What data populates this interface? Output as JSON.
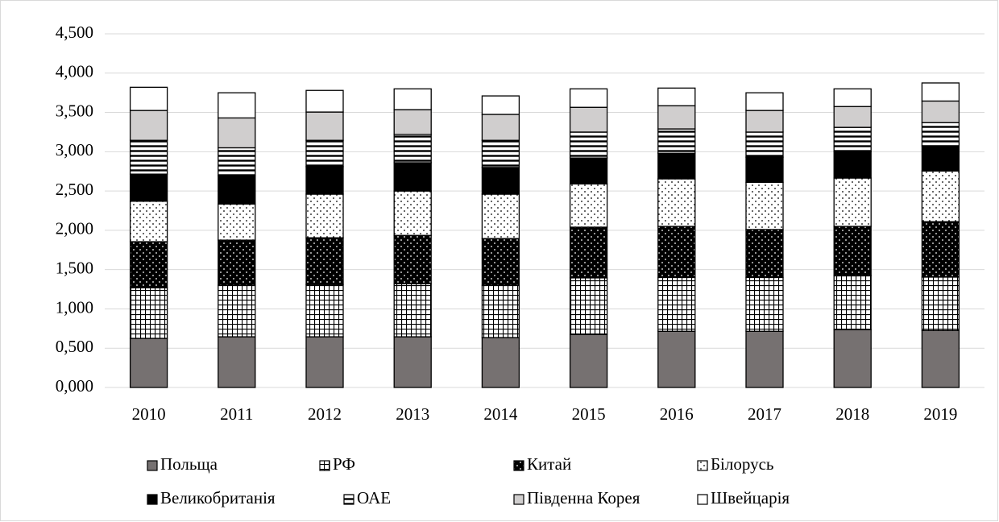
{
  "chart_data": {
    "type": "stacked_bar",
    "categories": [
      "2010",
      "2011",
      "2012",
      "2013",
      "2014",
      "2015",
      "2016",
      "2017",
      "2018",
      "2019"
    ],
    "series": [
      {
        "name": "Польща",
        "color": "#767171",
        "pattern": "solid",
        "values": [
          0.625,
          0.645,
          0.645,
          0.645,
          0.635,
          0.675,
          0.715,
          0.715,
          0.735,
          0.725
        ]
      },
      {
        "name": "РФ",
        "color": "#000000",
        "pattern": "grid",
        "values": [
          0.645,
          0.655,
          0.665,
          0.675,
          0.665,
          0.72,
          0.685,
          0.685,
          0.69,
          0.68
        ]
      },
      {
        "name": "Китай",
        "color": "#000000",
        "pattern": "dark-dots",
        "values": [
          0.585,
          0.575,
          0.595,
          0.615,
          0.595,
          0.645,
          0.65,
          0.61,
          0.625,
          0.705
        ]
      },
      {
        "name": "Білорусь",
        "color": "#000000",
        "pattern": "light-dots",
        "values": [
          0.515,
          0.46,
          0.555,
          0.565,
          0.565,
          0.55,
          0.605,
          0.6,
          0.615,
          0.645
        ]
      },
      {
        "name": "Великобританія",
        "color": "#000000",
        "pattern": "solid",
        "values": [
          0.345,
          0.36,
          0.35,
          0.36,
          0.34,
          0.33,
          0.325,
          0.32,
          0.335,
          0.32
        ]
      },
      {
        "name": "ОАЕ",
        "color": "#000000",
        "pattern": "stripes",
        "values": [
          0.43,
          0.355,
          0.335,
          0.36,
          0.345,
          0.33,
          0.31,
          0.32,
          0.31,
          0.295
        ]
      },
      {
        "name": "Південна Корея",
        "color": "#d0cece",
        "pattern": "solid",
        "values": [
          0.38,
          0.38,
          0.36,
          0.315,
          0.33,
          0.315,
          0.295,
          0.275,
          0.265,
          0.275
        ]
      },
      {
        "name": "Швейцарія",
        "color": "#ffffff",
        "pattern": "solid",
        "values": [
          0.295,
          0.32,
          0.275,
          0.265,
          0.235,
          0.235,
          0.225,
          0.225,
          0.225,
          0.23
        ]
      }
    ],
    "ylim": [
      0,
      4.5
    ],
    "yticks": [
      {
        "value": 0,
        "label": "0,000"
      },
      {
        "value": 0.5,
        "label": "0,500"
      },
      {
        "value": 1,
        "label": "1,000"
      },
      {
        "value": 1.5,
        "label": "1,500"
      },
      {
        "value": 2,
        "label": "2,000"
      },
      {
        "value": 2.5,
        "label": "2,500"
      },
      {
        "value": 3,
        "label": "3,000"
      },
      {
        "value": 3.5,
        "label": "3,500"
      },
      {
        "value": 4,
        "label": "4,000"
      },
      {
        "value": 4.5,
        "label": "4,500"
      }
    ],
    "grid": true,
    "legend": "bottom"
  }
}
